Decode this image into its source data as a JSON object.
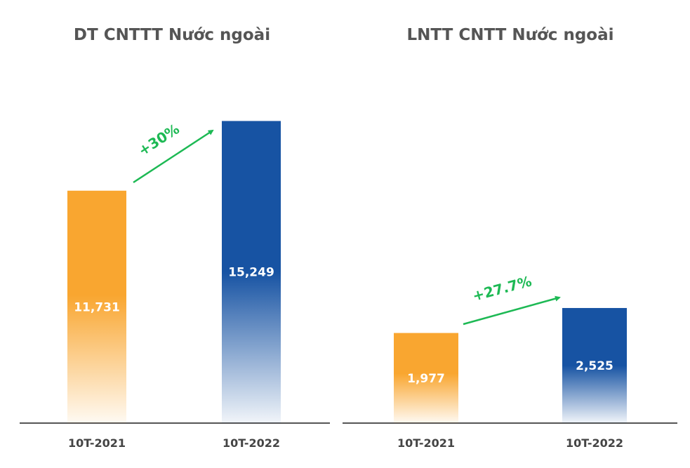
{
  "colors": {
    "orange": "#f9a630",
    "blue": "#1753a3",
    "growth": "#1db954",
    "axis": "#555555"
  },
  "chart_data": [
    {
      "type": "bar",
      "title": "DT CNTTT Nước ngoài",
      "categories": [
        "10T-2021",
        "10T-2022"
      ],
      "values": [
        11731,
        15249
      ],
      "value_labels": [
        "11,731",
        "15,249"
      ],
      "growth_label": "+30%",
      "ylim": [
        0,
        15300
      ],
      "grid": false
    },
    {
      "type": "bar",
      "title": "LNTT CNTT Nước ngoài",
      "categories": [
        "10T-2021",
        "10T-2022"
      ],
      "values": [
        1977,
        2525
      ],
      "value_labels": [
        "1,977",
        "2,525"
      ],
      "growth_label": "+27.7%",
      "ylim": [
        0,
        6650
      ],
      "grid": false
    }
  ]
}
